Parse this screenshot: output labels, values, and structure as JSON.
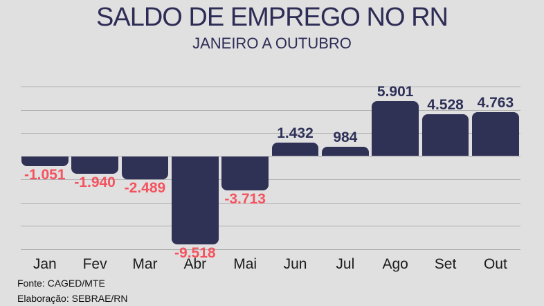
{
  "title": "SALDO DE EMPREGO NO RN",
  "subtitle": "JANEIRO A OUTUBRO",
  "footer": {
    "line1": "Fonte: CAGED/MTE",
    "line2": "Elaboração: SEBRAE/RN"
  },
  "colors": {
    "background": "#e0e0e1",
    "bar": "#2f3155",
    "title_text": "#2d2c55",
    "positive_label": "#2e3157",
    "negative_label": "#f4535e",
    "gridline": "#aeaeb0",
    "month_label": "#1a1a1a",
    "footer_text": "#111111"
  },
  "chart_data": {
    "type": "bar",
    "title": "SALDO DE EMPREGO NO RN",
    "subtitle": "JANEIRO A OUTUBRO",
    "categories": [
      "Jan",
      "Fev",
      "Mar",
      "Abr",
      "Mai",
      "Jun",
      "Jul",
      "Ago",
      "Set",
      "Out"
    ],
    "values": [
      -1051,
      -1940,
      -2489,
      -9518,
      -3713,
      1432,
      984,
      5901,
      4528,
      4763
    ],
    "value_labels": [
      "-1.051",
      "-1.940",
      "-2.489",
      "-9.518",
      "-3.713",
      "1.432",
      "984",
      "5.901",
      "4.528",
      "4.763"
    ],
    "xlabel": "",
    "ylabel": "",
    "ylim": [
      -10000,
      7500
    ],
    "gridline_step": 2500,
    "grid": true,
    "legend": false,
    "source": "Fonte: CAGED/MTE",
    "elaboration": "Elaboração: SEBRAE/RN"
  }
}
